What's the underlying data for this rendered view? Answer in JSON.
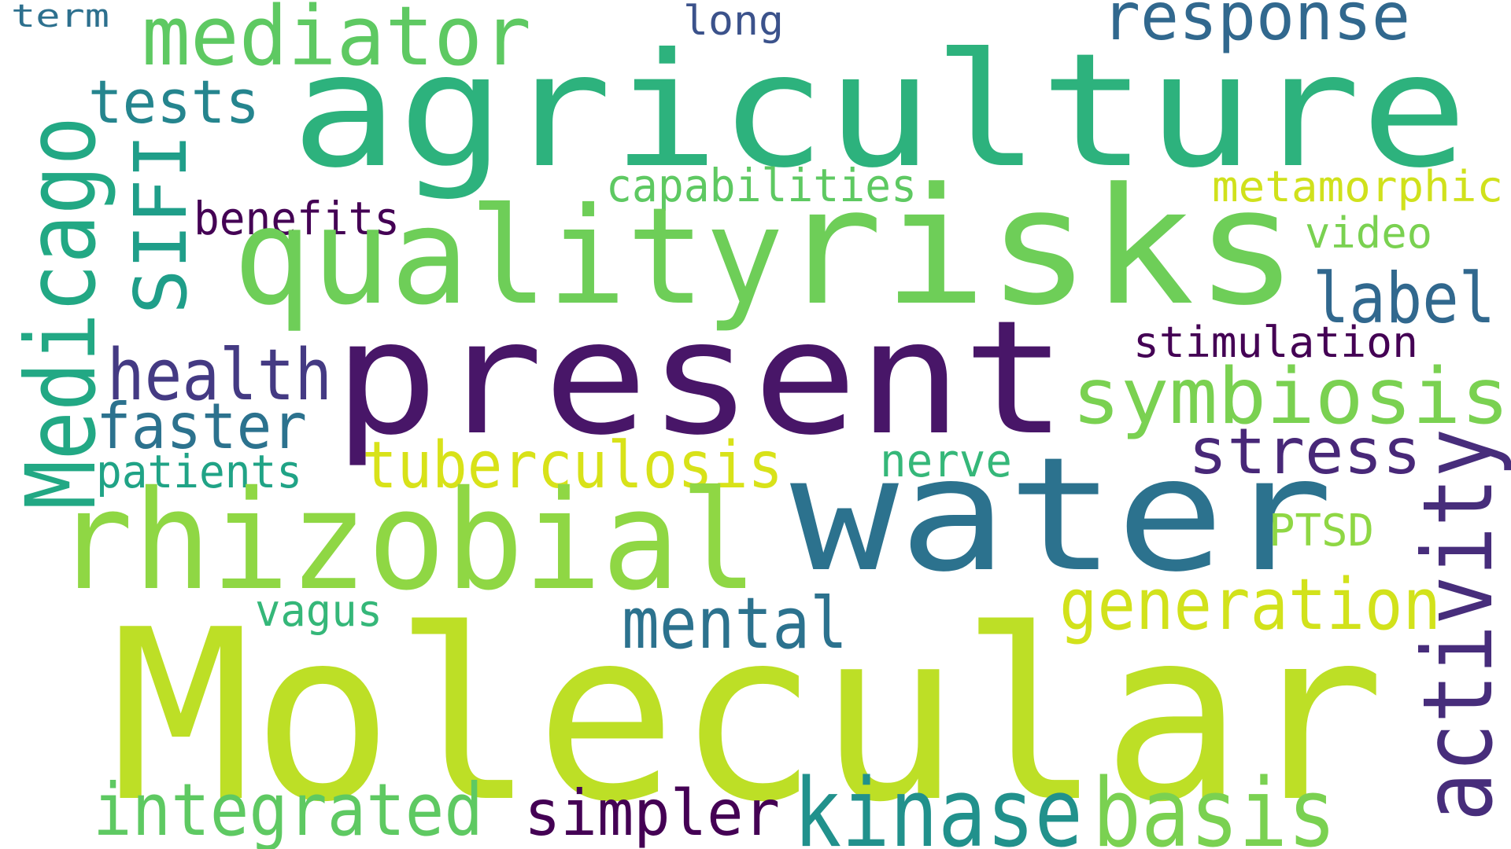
{
  "word_cloud": {
    "background": "#ffffff",
    "words": [
      {
        "id": "term",
        "text": "term",
        "color": "#2d708e"
      },
      {
        "id": "long",
        "text": "long",
        "color": "#3b528b"
      },
      {
        "id": "mediator",
        "text": "mediator",
        "color": "#5ec962"
      },
      {
        "id": "response",
        "text": "response",
        "color": "#31688e"
      },
      {
        "id": "agriculture",
        "text": "agriculture",
        "color": "#2db27d"
      },
      {
        "id": "tests",
        "text": "tests",
        "color": "#25858e"
      },
      {
        "id": "medicago",
        "text": "Medicago",
        "color": "#22a884"
      },
      {
        "id": "sifi",
        "text": "SIFI",
        "color": "#1f9e89"
      },
      {
        "id": "capabilities",
        "text": "capabilities",
        "color": "#5ec962"
      },
      {
        "id": "metamorphic",
        "text": "metamorphic",
        "color": "#d0e11c"
      },
      {
        "id": "benefits",
        "text": "benefits",
        "color": "#440154"
      },
      {
        "id": "quality",
        "text": "quality",
        "color": "#6ece58"
      },
      {
        "id": "risks",
        "text": "risks",
        "color": "#6ece58"
      },
      {
        "id": "video",
        "text": "video",
        "color": "#7ad151"
      },
      {
        "id": "label",
        "text": "label",
        "color": "#31688e"
      },
      {
        "id": "stimulation",
        "text": "stimulation",
        "color": "#440154"
      },
      {
        "id": "present",
        "text": "present",
        "color": "#481668"
      },
      {
        "id": "health",
        "text": "health",
        "color": "#443a83"
      },
      {
        "id": "symbiosis",
        "text": "symbiosis",
        "color": "#7ad151"
      },
      {
        "id": "faster",
        "text": "faster",
        "color": "#2c728e"
      },
      {
        "id": "stress",
        "text": "stress",
        "color": "#482878"
      },
      {
        "id": "patients",
        "text": "patients",
        "color": "#20a386"
      },
      {
        "id": "tuberculosis",
        "text": "tuberculosis",
        "color": "#d8e219"
      },
      {
        "id": "nerve",
        "text": "nerve",
        "color": "#35b779"
      },
      {
        "id": "activity",
        "text": "activity",
        "color": "#472d7b"
      },
      {
        "id": "water",
        "text": "water",
        "color": "#2c728e"
      },
      {
        "id": "rhizobial",
        "text": "rhizobial",
        "color": "#8fd744"
      },
      {
        "id": "ptsd",
        "text": "PTSD",
        "color": "#8fd744"
      },
      {
        "id": "generation",
        "text": "generation",
        "color": "#d2e21b"
      },
      {
        "id": "vagus",
        "text": "vagus",
        "color": "#35b779"
      },
      {
        "id": "mental",
        "text": "mental",
        "color": "#2c728e"
      },
      {
        "id": "molecular",
        "text": "Molecular",
        "color": "#bddf26"
      },
      {
        "id": "integrated",
        "text": "integrated",
        "color": "#5ec962"
      },
      {
        "id": "simpler",
        "text": "simpler",
        "color": "#440154"
      },
      {
        "id": "kinase",
        "text": "kinase",
        "color": "#21918c"
      },
      {
        "id": "basis",
        "text": "basis",
        "color": "#7ad151"
      }
    ]
  }
}
